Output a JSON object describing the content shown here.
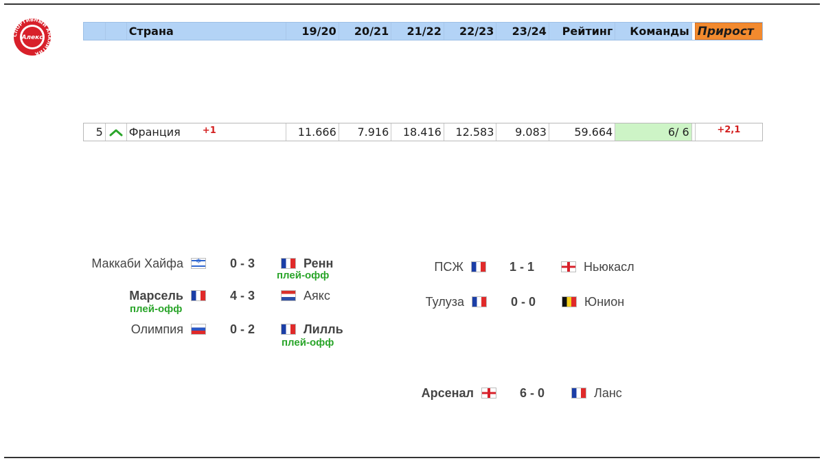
{
  "logo": {
    "center_text": "Алекс",
    "ring_text": "СПОРТИВНЫЙ АНАЛИТИК",
    "colors": {
      "ring": "#d8202a",
      "text": "#ffffff"
    }
  },
  "table": {
    "headers": {
      "num": "",
      "arrow": "",
      "country": "Страна",
      "seasons": [
        "19/20",
        "20/21",
        "21/22",
        "22/23",
        "23/24"
      ],
      "rating": "Рейтинг",
      "teams": "Команды",
      "growth": "Прирост"
    },
    "row": {
      "rank": "5",
      "trend_icon": "chevron-up-icon",
      "country": "Франция",
      "rank_change": "+1",
      "seasons": [
        "11.666",
        "7.916",
        "18.416",
        "12.583",
        "9.083"
      ],
      "rating": "59.664",
      "teams": "6/ 6",
      "growth": "+2,1"
    },
    "colors": {
      "header_bg": "#b3d3f6",
      "growth_header_bg": "#f28a2e",
      "teams_bg": "#cdf4c6",
      "positive": "#d31f1f",
      "trend_up": "#2aa52a"
    }
  },
  "matches_left": [
    {
      "home": "Маккаби Хайфа",
      "home_flag": "israel-flag-icon",
      "score": "0 - 3",
      "away": "Ренн",
      "away_flag": "france-flag-icon",
      "note": "плей-офф"
    },
    {
      "home": "Марсель",
      "home_flag": "france-flag-icon",
      "score": "4 - 3",
      "away": "Аякс",
      "away_flag": "netherlands-flag-icon",
      "note": "плей-офф"
    },
    {
      "home": "Олимпия",
      "home_flag": "slovenia-flag-icon",
      "score": "0 - 2",
      "away": "Лилль",
      "away_flag": "france-flag-icon",
      "note": "плей-офф"
    }
  ],
  "matches_right": [
    {
      "home": "ПСЖ",
      "home_flag": "france-flag-icon",
      "score": "1 - 1",
      "away": "Ньюкасл",
      "away_flag": "england-flag-icon"
    },
    {
      "home": "Тулуза",
      "home_flag": "france-flag-icon",
      "score": "0 - 0",
      "away": "Юнион",
      "away_flag": "belgium-flag-icon"
    },
    {
      "home": "Арсенал",
      "home_flag": "england-flag-icon",
      "score": "6 - 0",
      "away": "Ланс",
      "away_flag": "france-flag-icon"
    }
  ]
}
